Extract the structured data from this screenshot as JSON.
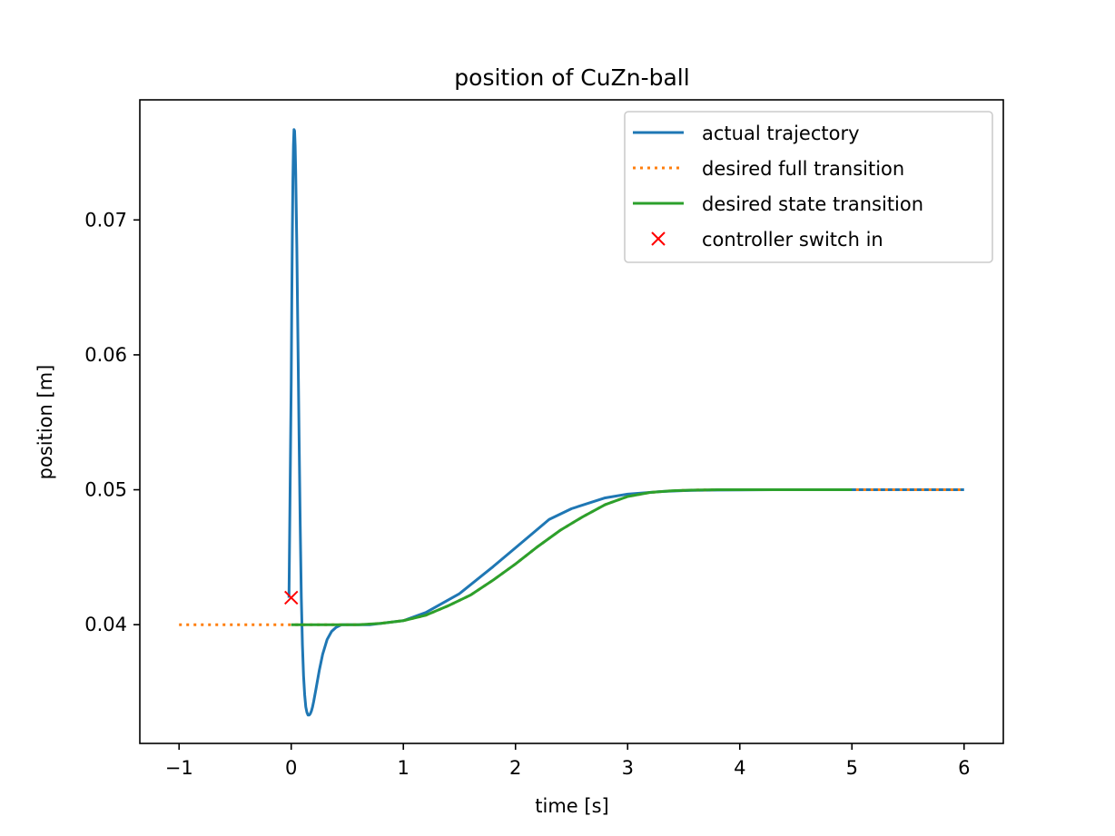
{
  "chart_data": {
    "type": "line",
    "title": "position of CuZn-ball",
    "xlabel": "time [s]",
    "ylabel": "position [m]",
    "xlim": [
      -1.35,
      6.35
    ],
    "ylim": [
      0.0312,
      0.0789
    ],
    "xticks": [
      -1,
      0,
      1,
      2,
      3,
      4,
      5,
      6
    ],
    "xtick_labels": [
      "−1",
      "0",
      "1",
      "2",
      "3",
      "4",
      "5",
      "6"
    ],
    "yticks": [
      0.04,
      0.05,
      0.06,
      0.07
    ],
    "ytick_labels": [
      "0.04",
      "0.05",
      "0.06",
      "0.07"
    ],
    "legend_position": "top-right",
    "colors": {
      "actual": "#1f77b4",
      "full": "#ff7f0e",
      "state": "#2ca02c",
      "switch": "#ff0000"
    },
    "series": [
      {
        "name": "actual trajectory",
        "style": "solid",
        "x": [
          -0.02,
          -0.01,
          0.0,
          0.005,
          0.01,
          0.015,
          0.02,
          0.025,
          0.03,
          0.035,
          0.04,
          0.05,
          0.06,
          0.07,
          0.08,
          0.09,
          0.1,
          0.11,
          0.12,
          0.13,
          0.14,
          0.15,
          0.16,
          0.17,
          0.18,
          0.19,
          0.2,
          0.22,
          0.25,
          0.28,
          0.32,
          0.36,
          0.4,
          0.45,
          0.5,
          0.6,
          0.7,
          0.8,
          1.0,
          1.2,
          1.5,
          1.8,
          2.0,
          2.3,
          2.5,
          2.8,
          3.0,
          3.3,
          3.5,
          3.8,
          4.0,
          4.3,
          4.5,
          4.8,
          5.0,
          5.5,
          6.0
        ],
        "values": [
          0.042,
          0.05,
          0.058,
          0.064,
          0.069,
          0.073,
          0.0755,
          0.0767,
          0.0766,
          0.0755,
          0.0735,
          0.068,
          0.061,
          0.054,
          0.0475,
          0.042,
          0.0385,
          0.0362,
          0.0348,
          0.0339,
          0.0335,
          0.0333,
          0.0333,
          0.0334,
          0.0336,
          0.0339,
          0.0343,
          0.0352,
          0.0366,
          0.0378,
          0.0389,
          0.0395,
          0.0398,
          0.04,
          0.04,
          0.04,
          0.04,
          0.0401,
          0.0403,
          0.0409,
          0.0423,
          0.0443,
          0.0457,
          0.0478,
          0.0486,
          0.0494,
          0.04968,
          0.04987,
          0.04994,
          0.04998,
          0.04999,
          0.05,
          0.05,
          0.05,
          0.05,
          0.05,
          0.05
        ]
      },
      {
        "name": "desired full transition",
        "style": "dotted",
        "x": [
          -1.0,
          0.0,
          0.2,
          0.4,
          0.6,
          0.8,
          1.0,
          1.2,
          1.4,
          1.6,
          1.8,
          2.0,
          2.2,
          2.4,
          2.6,
          2.8,
          3.0,
          3.2,
          3.4,
          3.6,
          3.8,
          4.0,
          4.2,
          4.4,
          4.6,
          4.8,
          5.0,
          6.0
        ],
        "values": [
          0.04,
          0.04,
          0.04,
          0.04,
          0.04,
          0.0401,
          0.0403,
          0.0407,
          0.0414,
          0.0422,
          0.0433,
          0.0445,
          0.0458,
          0.047,
          0.048,
          0.0489,
          0.0495,
          0.0498,
          0.04993,
          0.04998,
          0.05,
          0.05,
          0.05,
          0.05,
          0.05,
          0.05,
          0.05,
          0.05
        ]
      },
      {
        "name": "desired state transition",
        "style": "solid",
        "x": [
          0.0,
          0.2,
          0.4,
          0.6,
          0.8,
          1.0,
          1.2,
          1.4,
          1.6,
          1.8,
          2.0,
          2.2,
          2.4,
          2.6,
          2.8,
          3.0,
          3.2,
          3.4,
          3.6,
          3.8,
          4.0,
          4.2,
          4.4,
          4.6,
          4.8,
          5.0
        ],
        "values": [
          0.04,
          0.04,
          0.04,
          0.04,
          0.0401,
          0.0403,
          0.0407,
          0.0414,
          0.0422,
          0.0433,
          0.0445,
          0.0458,
          0.047,
          0.048,
          0.0489,
          0.0495,
          0.0498,
          0.04993,
          0.04998,
          0.05,
          0.05,
          0.05,
          0.05,
          0.05,
          0.05,
          0.05
        ]
      },
      {
        "name": "controller switch in",
        "style": "marker-x",
        "x": [
          0.0
        ],
        "values": [
          0.042
        ]
      }
    ]
  }
}
